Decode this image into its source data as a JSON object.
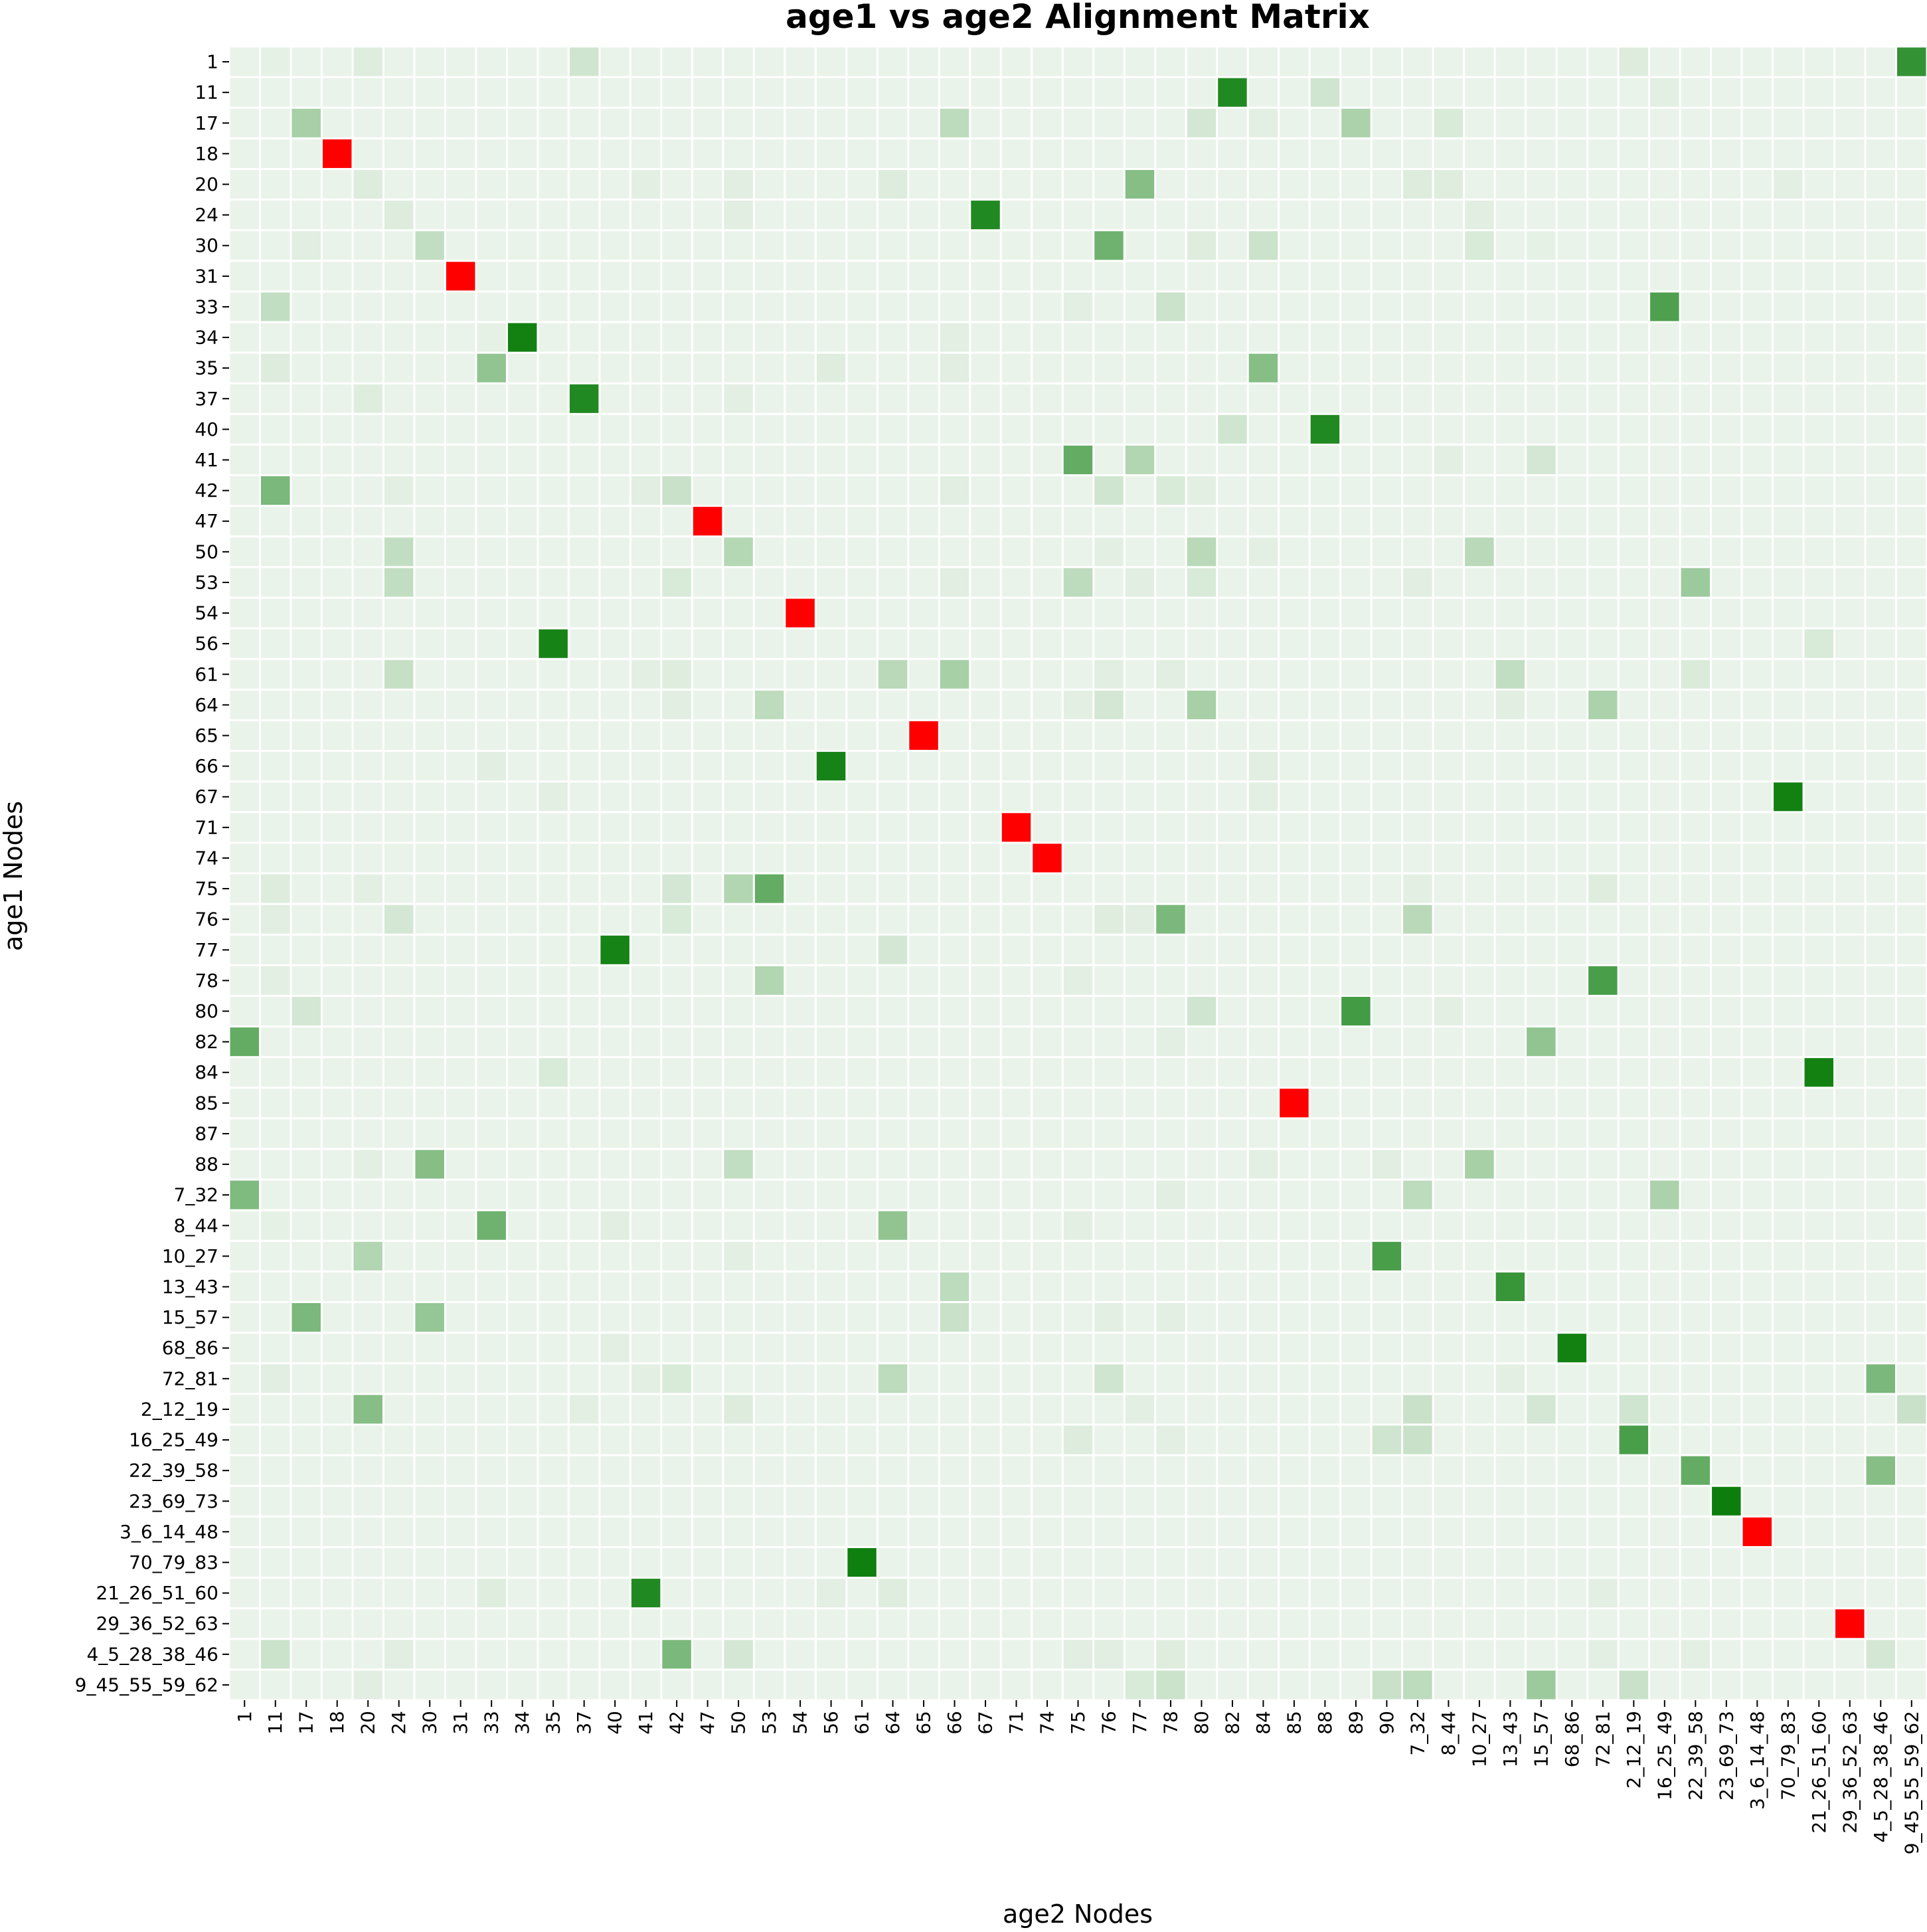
{
  "chart_data": {
    "type": "heatmap",
    "title": "age1 vs age2 Alignment Matrix",
    "xlabel": "age2 Nodes",
    "ylabel": "age1 Nodes",
    "legend": "none",
    "grid": true,
    "colors": {
      "background": "#eaf3ea",
      "gridline": "#ffffff",
      "low": "#eaf3ea",
      "high": "#0b7d0b",
      "mismatch": "#ff0000",
      "text": "#000000"
    },
    "x_categories": [
      "1",
      "11",
      "17",
      "18",
      "20",
      "24",
      "30",
      "31",
      "33",
      "34",
      "35",
      "37",
      "40",
      "41",
      "42",
      "47",
      "50",
      "53",
      "54",
      "56",
      "61",
      "64",
      "65",
      "66",
      "67",
      "71",
      "74",
      "75",
      "76",
      "77",
      "78",
      "80",
      "82",
      "84",
      "85",
      "88",
      "89",
      "90",
      "7_32",
      "8_44",
      "10_27",
      "13_43",
      "15_57",
      "68_86",
      "72_81",
      "2_12_19",
      "16_25_49",
      "22_39_58",
      "23_69_73",
      "3_6_14_48",
      "70_79_83",
      "21_26_51_60",
      "29_36_52_63",
      "4_5_28_38_46",
      "9_45_55_59_62"
    ],
    "y_categories": [
      "1",
      "11",
      "17",
      "18",
      "20",
      "24",
      "30",
      "31",
      "33",
      "34",
      "35",
      "37",
      "40",
      "41",
      "42",
      "47",
      "50",
      "53",
      "54",
      "56",
      "61",
      "64",
      "65",
      "66",
      "67",
      "71",
      "74",
      "75",
      "76",
      "77",
      "78",
      "80",
      "82",
      "84",
      "85",
      "87",
      "88",
      "7_32",
      "8_44",
      "10_27",
      "13_43",
      "15_57",
      "68_86",
      "72_81",
      "2_12_19",
      "16_25_49",
      "22_39_58",
      "23_69_73",
      "3_6_14_48",
      "70_79_83",
      "21_26_51_60",
      "29_36_52_63",
      "4_5_28_38_46",
      "9_45_55_59_62"
    ],
    "value_range": [
      0,
      1
    ],
    "mismatch_cells": [
      {
        "row": "18",
        "col": "18"
      },
      {
        "row": "31",
        "col": "31"
      },
      {
        "row": "47",
        "col": "47"
      },
      {
        "row": "54",
        "col": "54"
      },
      {
        "row": "65",
        "col": "65"
      },
      {
        "row": "71",
        "col": "71"
      },
      {
        "row": "74",
        "col": "74"
      },
      {
        "row": "85",
        "col": "85"
      },
      {
        "row": "3_6_14_48",
        "col": "3_6_14_48"
      },
      {
        "row": "29_36_52_63",
        "col": "29_36_52_63"
      }
    ],
    "cells": [
      {
        "row": "1",
        "col": "11",
        "value": 0.02
      },
      {
        "row": "1",
        "col": "20",
        "value": 0.05
      },
      {
        "row": "1",
        "col": "37",
        "value": 0.12
      },
      {
        "row": "1",
        "col": "2_12_19",
        "value": 0.06
      },
      {
        "row": "1",
        "col": "9_45_55_59_62",
        "value": 0.82
      },
      {
        "row": "11",
        "col": "82",
        "value": 0.9
      },
      {
        "row": "11",
        "col": "88",
        "value": 0.12
      },
      {
        "row": "11",
        "col": "16_25_49",
        "value": 0.03
      },
      {
        "row": "17",
        "col": "17",
        "value": 0.3
      },
      {
        "row": "17",
        "col": "66",
        "value": 0.2
      },
      {
        "row": "17",
        "col": "80",
        "value": 0.1
      },
      {
        "row": "17",
        "col": "84",
        "value": 0.03
      },
      {
        "row": "17",
        "col": "89",
        "value": 0.28
      },
      {
        "row": "17",
        "col": "8_44",
        "value": 0.08
      },
      {
        "row": "20",
        "col": "20",
        "value": 0.06
      },
      {
        "row": "20",
        "col": "41",
        "value": 0.03
      },
      {
        "row": "20",
        "col": "50",
        "value": 0.04
      },
      {
        "row": "20",
        "col": "64",
        "value": 0.06
      },
      {
        "row": "20",
        "col": "77",
        "value": 0.45
      },
      {
        "row": "20",
        "col": "7_32",
        "value": 0.06
      },
      {
        "row": "20",
        "col": "8_44",
        "value": 0.05
      },
      {
        "row": "20",
        "col": "70_79_83",
        "value": 0.03
      },
      {
        "row": "24",
        "col": "24",
        "value": 0.06
      },
      {
        "row": "24",
        "col": "50",
        "value": 0.04
      },
      {
        "row": "24",
        "col": "67",
        "value": 0.9
      },
      {
        "row": "24",
        "col": "10_27",
        "value": 0.04
      },
      {
        "row": "30",
        "col": "17",
        "value": 0.04
      },
      {
        "row": "30",
        "col": "30",
        "value": 0.18
      },
      {
        "row": "30",
        "col": "76",
        "value": 0.55
      },
      {
        "row": "30",
        "col": "80",
        "value": 0.05
      },
      {
        "row": "30",
        "col": "84",
        "value": 0.14
      },
      {
        "row": "30",
        "col": "10_27",
        "value": 0.08
      },
      {
        "row": "30",
        "col": "15_57",
        "value": 0.02
      },
      {
        "row": "33",
        "col": "11",
        "value": 0.18
      },
      {
        "row": "33",
        "col": "75",
        "value": 0.03
      },
      {
        "row": "33",
        "col": "78",
        "value": 0.14
      },
      {
        "row": "33",
        "col": "16_25_49",
        "value": 0.7
      },
      {
        "row": "34",
        "col": "33",
        "value": 0.02
      },
      {
        "row": "34",
        "col": "34",
        "value": 0.97
      },
      {
        "row": "34",
        "col": "66",
        "value": 0.03
      },
      {
        "row": "35",
        "col": "11",
        "value": 0.06
      },
      {
        "row": "35",
        "col": "33",
        "value": 0.4
      },
      {
        "row": "35",
        "col": "56",
        "value": 0.05
      },
      {
        "row": "35",
        "col": "66",
        "value": 0.04
      },
      {
        "row": "35",
        "col": "84",
        "value": 0.45
      },
      {
        "row": "37",
        "col": "20",
        "value": 0.05
      },
      {
        "row": "37",
        "col": "37",
        "value": 0.9
      },
      {
        "row": "37",
        "col": "50",
        "value": 0.03
      },
      {
        "row": "40",
        "col": "82",
        "value": 0.12
      },
      {
        "row": "40",
        "col": "88",
        "value": 0.9
      },
      {
        "row": "41",
        "col": "75",
        "value": 0.6
      },
      {
        "row": "41",
        "col": "77",
        "value": 0.25
      },
      {
        "row": "41",
        "col": "8_44",
        "value": 0.03
      },
      {
        "row": "41",
        "col": "15_57",
        "value": 0.1
      },
      {
        "row": "42",
        "col": "11",
        "value": 0.5
      },
      {
        "row": "42",
        "col": "24",
        "value": 0.03
      },
      {
        "row": "42",
        "col": "41",
        "value": 0.04
      },
      {
        "row": "42",
        "col": "42",
        "value": 0.15
      },
      {
        "row": "42",
        "col": "66",
        "value": 0.04
      },
      {
        "row": "42",
        "col": "76",
        "value": 0.12
      },
      {
        "row": "42",
        "col": "78",
        "value": 0.08
      },
      {
        "row": "42",
        "col": "80",
        "value": 0.03
      },
      {
        "row": "50",
        "col": "24",
        "value": 0.18
      },
      {
        "row": "50",
        "col": "50",
        "value": 0.24
      },
      {
        "row": "50",
        "col": "76",
        "value": 0.03
      },
      {
        "row": "50",
        "col": "80",
        "value": 0.22
      },
      {
        "row": "50",
        "col": "84",
        "value": 0.03
      },
      {
        "row": "50",
        "col": "10_27",
        "value": 0.22
      },
      {
        "row": "53",
        "col": "24",
        "value": 0.18
      },
      {
        "row": "53",
        "col": "42",
        "value": 0.08
      },
      {
        "row": "53",
        "col": "66",
        "value": 0.04
      },
      {
        "row": "53",
        "col": "75",
        "value": 0.2
      },
      {
        "row": "53",
        "col": "77",
        "value": 0.04
      },
      {
        "row": "53",
        "col": "80",
        "value": 0.08
      },
      {
        "row": "53",
        "col": "7_32",
        "value": 0.04
      },
      {
        "row": "53",
        "col": "22_39_58",
        "value": 0.35
      },
      {
        "row": "56",
        "col": "35",
        "value": 0.95
      },
      {
        "row": "56",
        "col": "21_26_51_60",
        "value": 0.08
      },
      {
        "row": "61",
        "col": "24",
        "value": 0.16
      },
      {
        "row": "61",
        "col": "41",
        "value": 0.03
      },
      {
        "row": "61",
        "col": "42",
        "value": 0.05
      },
      {
        "row": "61",
        "col": "64",
        "value": 0.22
      },
      {
        "row": "61",
        "col": "66",
        "value": 0.3
      },
      {
        "row": "61",
        "col": "76",
        "value": 0.04
      },
      {
        "row": "61",
        "col": "78",
        "value": 0.04
      },
      {
        "row": "61",
        "col": "13_43",
        "value": 0.18
      },
      {
        "row": "61",
        "col": "22_39_58",
        "value": 0.07
      },
      {
        "row": "64",
        "col": "42",
        "value": 0.04
      },
      {
        "row": "64",
        "col": "53",
        "value": 0.2
      },
      {
        "row": "64",
        "col": "75",
        "value": 0.03
      },
      {
        "row": "64",
        "col": "76",
        "value": 0.1
      },
      {
        "row": "64",
        "col": "80",
        "value": 0.3
      },
      {
        "row": "64",
        "col": "13_43",
        "value": 0.04
      },
      {
        "row": "64",
        "col": "72_81",
        "value": 0.28
      },
      {
        "row": "66",
        "col": "33",
        "value": 0.04
      },
      {
        "row": "66",
        "col": "56",
        "value": 0.95
      },
      {
        "row": "66",
        "col": "84",
        "value": 0.04
      },
      {
        "row": "67",
        "col": "35",
        "value": 0.03
      },
      {
        "row": "67",
        "col": "84",
        "value": 0.03
      },
      {
        "row": "67",
        "col": "70_79_83",
        "value": 0.97
      },
      {
        "row": "75",
        "col": "11",
        "value": 0.06
      },
      {
        "row": "75",
        "col": "20",
        "value": 0.03
      },
      {
        "row": "75",
        "col": "42",
        "value": 0.1
      },
      {
        "row": "75",
        "col": "50",
        "value": 0.25
      },
      {
        "row": "75",
        "col": "53",
        "value": 0.6
      },
      {
        "row": "75",
        "col": "7_32",
        "value": 0.03
      },
      {
        "row": "75",
        "col": "72_81",
        "value": 0.05
      },
      {
        "row": "76",
        "col": "11",
        "value": 0.04
      },
      {
        "row": "76",
        "col": "24",
        "value": 0.1
      },
      {
        "row": "76",
        "col": "42",
        "value": 0.08
      },
      {
        "row": "76",
        "col": "76",
        "value": 0.05
      },
      {
        "row": "76",
        "col": "77",
        "value": 0.04
      },
      {
        "row": "76",
        "col": "78",
        "value": 0.5
      },
      {
        "row": "76",
        "col": "7_32",
        "value": 0.22
      },
      {
        "row": "77",
        "col": "40",
        "value": 0.95
      },
      {
        "row": "77",
        "col": "64",
        "value": 0.1
      },
      {
        "row": "78",
        "col": "11",
        "value": 0.03
      },
      {
        "row": "78",
        "col": "53",
        "value": 0.25
      },
      {
        "row": "78",
        "col": "75",
        "value": 0.03
      },
      {
        "row": "78",
        "col": "72_81",
        "value": 0.72
      },
      {
        "row": "80",
        "col": "17",
        "value": 0.1
      },
      {
        "row": "80",
        "col": "80",
        "value": 0.12
      },
      {
        "row": "80",
        "col": "89",
        "value": 0.75
      },
      {
        "row": "80",
        "col": "8_44",
        "value": 0.03
      },
      {
        "row": "82",
        "col": "1",
        "value": 0.6
      },
      {
        "row": "82",
        "col": "78",
        "value": 0.03
      },
      {
        "row": "82",
        "col": "15_57",
        "value": 0.4
      },
      {
        "row": "84",
        "col": "35",
        "value": 0.08
      },
      {
        "row": "84",
        "col": "21_26_51_60",
        "value": 0.97
      },
      {
        "row": "88",
        "col": "20",
        "value": 0.03
      },
      {
        "row": "88",
        "col": "30",
        "value": 0.45
      },
      {
        "row": "88",
        "col": "50",
        "value": 0.18
      },
      {
        "row": "88",
        "col": "84",
        "value": 0.03
      },
      {
        "row": "88",
        "col": "90",
        "value": 0.04
      },
      {
        "row": "88",
        "col": "10_27",
        "value": 0.3
      },
      {
        "row": "7_32",
        "col": "1",
        "value": 0.48
      },
      {
        "row": "7_32",
        "col": "78",
        "value": 0.04
      },
      {
        "row": "7_32",
        "col": "7_32",
        "value": 0.2
      },
      {
        "row": "7_32",
        "col": "16_25_49",
        "value": 0.28
      },
      {
        "row": "8_44",
        "col": "11",
        "value": 0.02
      },
      {
        "row": "8_44",
        "col": "33",
        "value": 0.55
      },
      {
        "row": "8_44",
        "col": "40",
        "value": 0.04
      },
      {
        "row": "8_44",
        "col": "64",
        "value": 0.4
      },
      {
        "row": "8_44",
        "col": "75",
        "value": 0.03
      },
      {
        "row": "10_27",
        "col": "20",
        "value": 0.25
      },
      {
        "row": "10_27",
        "col": "50",
        "value": 0.03
      },
      {
        "row": "10_27",
        "col": "90",
        "value": 0.72
      },
      {
        "row": "13_43",
        "col": "66",
        "value": 0.2
      },
      {
        "row": "13_43",
        "col": "13_43",
        "value": 0.8
      },
      {
        "row": "15_57",
        "col": "17",
        "value": 0.5
      },
      {
        "row": "15_57",
        "col": "30",
        "value": 0.38
      },
      {
        "row": "15_57",
        "col": "66",
        "value": 0.15
      },
      {
        "row": "15_57",
        "col": "76",
        "value": 0.03
      },
      {
        "row": "15_57",
        "col": "78",
        "value": 0.03
      },
      {
        "row": "68_86",
        "col": "40",
        "value": 0.03
      },
      {
        "row": "68_86",
        "col": "68_86",
        "value": 0.97
      },
      {
        "row": "72_81",
        "col": "11",
        "value": 0.04
      },
      {
        "row": "72_81",
        "col": "41",
        "value": 0.03
      },
      {
        "row": "72_81",
        "col": "42",
        "value": 0.08
      },
      {
        "row": "72_81",
        "col": "64",
        "value": 0.2
      },
      {
        "row": "72_81",
        "col": "76",
        "value": 0.12
      },
      {
        "row": "72_81",
        "col": "13_43",
        "value": 0.03
      },
      {
        "row": "72_81",
        "col": "4_5_28_38_46",
        "value": 0.5
      },
      {
        "row": "2_12_19",
        "col": "20",
        "value": 0.45
      },
      {
        "row": "2_12_19",
        "col": "37",
        "value": 0.03
      },
      {
        "row": "2_12_19",
        "col": "50",
        "value": 0.06
      },
      {
        "row": "2_12_19",
        "col": "77",
        "value": 0.03
      },
      {
        "row": "2_12_19",
        "col": "7_32",
        "value": 0.15
      },
      {
        "row": "2_12_19",
        "col": "15_57",
        "value": 0.1
      },
      {
        "row": "2_12_19",
        "col": "2_12_19",
        "value": 0.12
      },
      {
        "row": "2_12_19",
        "col": "9_45_55_59_62",
        "value": 0.15
      },
      {
        "row": "16_25_49",
        "col": "75",
        "value": 0.06
      },
      {
        "row": "16_25_49",
        "col": "78",
        "value": 0.03
      },
      {
        "row": "16_25_49",
        "col": "90",
        "value": 0.12
      },
      {
        "row": "16_25_49",
        "col": "7_32",
        "value": 0.15
      },
      {
        "row": "16_25_49",
        "col": "2_12_19",
        "value": 0.72
      },
      {
        "row": "22_39_58",
        "col": "22_39_58",
        "value": 0.6
      },
      {
        "row": "22_39_58",
        "col": "4_5_28_38_46",
        "value": 0.45
      },
      {
        "row": "23_69_73",
        "col": "23_69_73",
        "value": 0.99
      },
      {
        "row": "70_79_83",
        "col": "61",
        "value": 0.98
      },
      {
        "row": "21_26_51_60",
        "col": "33",
        "value": 0.05
      },
      {
        "row": "21_26_51_60",
        "col": "41",
        "value": 0.9
      },
      {
        "row": "21_26_51_60",
        "col": "56",
        "value": 0.03
      },
      {
        "row": "21_26_51_60",
        "col": "64",
        "value": 0.05
      },
      {
        "row": "21_26_51_60",
        "col": "72_81",
        "value": 0.03
      },
      {
        "row": "4_5_28_38_46",
        "col": "11",
        "value": 0.14
      },
      {
        "row": "4_5_28_38_46",
        "col": "24",
        "value": 0.04
      },
      {
        "row": "4_5_28_38_46",
        "col": "42",
        "value": 0.5
      },
      {
        "row": "4_5_28_38_46",
        "col": "50",
        "value": 0.1
      },
      {
        "row": "4_5_28_38_46",
        "col": "75",
        "value": 0.04
      },
      {
        "row": "4_5_28_38_46",
        "col": "76",
        "value": 0.04
      },
      {
        "row": "4_5_28_38_46",
        "col": "78",
        "value": 0.05
      },
      {
        "row": "4_5_28_38_46",
        "col": "72_81",
        "value": 0.03
      },
      {
        "row": "4_5_28_38_46",
        "col": "22_39_58",
        "value": 0.03
      },
      {
        "row": "4_5_28_38_46",
        "col": "4_5_28_38_46",
        "value": 0.1
      },
      {
        "row": "9_45_55_59_62",
        "col": "20",
        "value": 0.04
      },
      {
        "row": "9_45_55_59_62",
        "col": "77",
        "value": 0.08
      },
      {
        "row": "9_45_55_59_62",
        "col": "78",
        "value": 0.14
      },
      {
        "row": "9_45_55_59_62",
        "col": "90",
        "value": 0.15
      },
      {
        "row": "9_45_55_59_62",
        "col": "7_32",
        "value": 0.2
      },
      {
        "row": "9_45_55_59_62",
        "col": "15_57",
        "value": 0.35
      },
      {
        "row": "9_45_55_59_62",
        "col": "2_12_19",
        "value": 0.15
      }
    ]
  }
}
